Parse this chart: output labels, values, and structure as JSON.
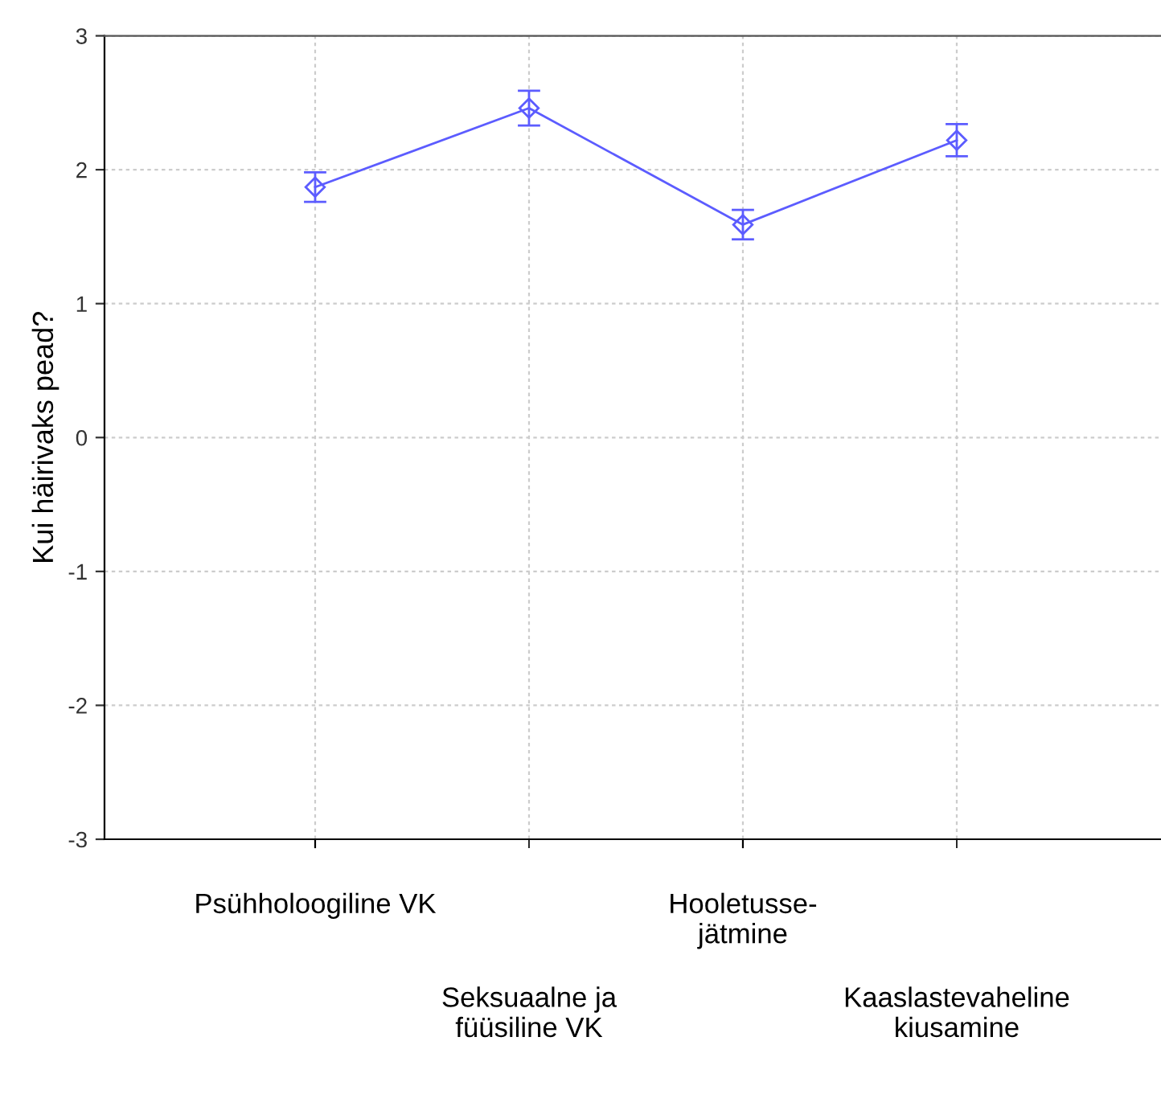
{
  "chart_data": {
    "type": "line",
    "ylabel": "Kui häirivaks pead?",
    "categories": [
      "Psühholoogiline VK",
      "Seksuaalne ja\nfüüsiline VK",
      "Hooletusse-\njätmine",
      "Kaaslastevaheline\nkiusamine"
    ],
    "series": [
      {
        "color": "#5c5cff",
        "values": [
          1.87,
          2.46,
          1.59,
          2.22
        ],
        "errors": [
          0.11,
          0.13,
          0.11,
          0.12
        ]
      }
    ],
    "ylim": [
      -3,
      3
    ],
    "yticks": [
      -3,
      -2,
      -1,
      0,
      1,
      2,
      3
    ],
    "grid": true,
    "marker": "diamond",
    "line_style": "solid"
  }
}
